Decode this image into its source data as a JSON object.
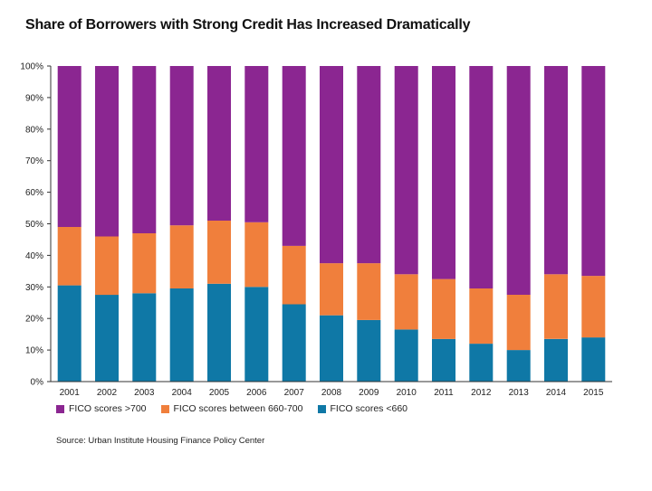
{
  "title": "Share of Borrowers with Strong Credit Has Increased Dramatically",
  "source": "Source: Urban Institute Housing Finance Policy Center",
  "colors": {
    "fico_gt_700": "#8b2691",
    "fico_660_700": "#f07f3c",
    "fico_lt_660": "#0f78a6",
    "axis": "#333333"
  },
  "legend": [
    {
      "label": "FICO scores >700",
      "color_key": "fico_gt_700"
    },
    {
      "label": "FICO scores between 660-700",
      "color_key": "fico_660_700"
    },
    {
      "label": "FICO scores <660",
      "color_key": "fico_lt_660"
    }
  ],
  "chart_data": {
    "type": "bar",
    "stacked": true,
    "title": "Share of Borrowers with Strong Credit Has Increased Dramatically",
    "categories": [
      "2001",
      "2002",
      "2003",
      "2004",
      "2005",
      "2006",
      "2007",
      "2008",
      "2009",
      "2010",
      "2011",
      "2012",
      "2013",
      "2014",
      "2015"
    ],
    "series": [
      {
        "name": "FICO scores <660",
        "color_key": "fico_lt_660",
        "values": [
          30.5,
          27.5,
          28,
          29.5,
          31,
          30,
          24.5,
          21,
          19.5,
          16.5,
          13.5,
          12,
          10,
          13.5,
          14
        ]
      },
      {
        "name": "FICO scores between 660-700",
        "color_key": "fico_660_700",
        "values": [
          18.5,
          18.5,
          19,
          20,
          20,
          20.5,
          18.5,
          16.5,
          18,
          17.5,
          19,
          17.5,
          17.5,
          20.5,
          19.5
        ]
      },
      {
        "name": "FICO scores >700",
        "color_key": "fico_gt_700",
        "values": [
          51,
          54,
          53,
          50.5,
          49,
          49.5,
          57,
          62.5,
          62.5,
          66,
          67.5,
          70.5,
          72.5,
          66,
          66.5
        ]
      }
    ],
    "yticks": [
      "0%",
      "10%",
      "20%",
      "30%",
      "40%",
      "50%",
      "60%",
      "70%",
      "80%",
      "90%",
      "100%"
    ],
    "ylim": [
      0,
      100
    ],
    "xlabel": "",
    "ylabel": ""
  }
}
